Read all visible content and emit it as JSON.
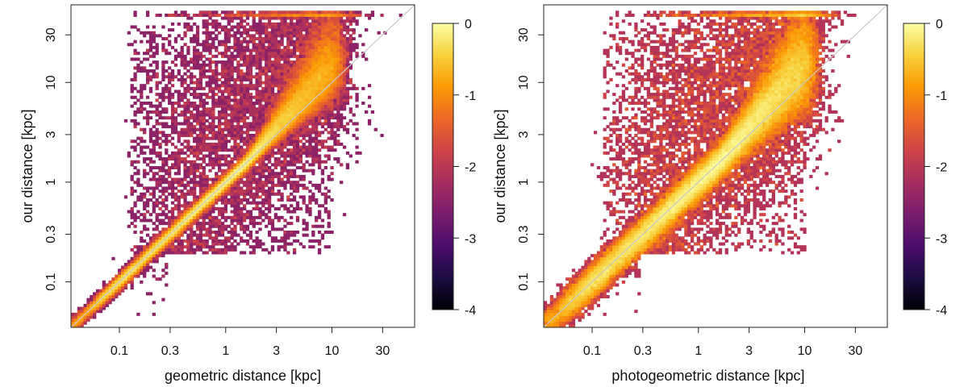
{
  "chart_data": [
    {
      "type": "scatter",
      "subtype": "density-scatter-loglog",
      "xlabel": "geometric distance [kpc]",
      "ylabel": "our distance [kpc]",
      "xscale": "log",
      "yscale": "log",
      "xlim": [
        0.035,
        60
      ],
      "ylim": [
        0.035,
        60
      ],
      "xticks": [
        0.1,
        0.3,
        1,
        3,
        10,
        30
      ],
      "yticks": [
        0.1,
        0.3,
        1,
        3,
        10,
        30
      ],
      "xtick_labels": [
        "0.1",
        "0.3",
        "1",
        "3",
        "10",
        "30"
      ],
      "ytick_labels": [
        "0.1",
        "0.3",
        "1",
        "3",
        "10",
        "30"
      ],
      "reference_line": "y = x",
      "upper_cap_kpc": 50,
      "colorbar": {
        "label": "",
        "ticks": [
          0,
          -1,
          -2,
          -3,
          -4
        ],
        "tick_labels": [
          "0",
          "-1",
          "-2",
          "-3",
          "-4"
        ],
        "range": [
          -4,
          0
        ]
      },
      "colormap": [
        "#000004",
        "#1b0c41",
        "#4a0c6b",
        "#781c6d",
        "#a52c60",
        "#cf4446",
        "#ed6925",
        "#fb9b06",
        "#f7d13d",
        "#fcffa4"
      ]
    },
    {
      "type": "scatter",
      "subtype": "density-scatter-loglog",
      "xlabel": "photogeometric distance [kpc]",
      "ylabel": "our distance [kpc]",
      "xscale": "log",
      "yscale": "log",
      "xlim": [
        0.035,
        60
      ],
      "ylim": [
        0.035,
        60
      ],
      "xticks": [
        0.1,
        0.3,
        1,
        3,
        10,
        30
      ],
      "yticks": [
        0.1,
        0.3,
        1,
        3,
        10,
        30
      ],
      "xtick_labels": [
        "0.1",
        "0.3",
        "1",
        "3",
        "10",
        "30"
      ],
      "ytick_labels": [
        "0.1",
        "0.3",
        "1",
        "3",
        "10",
        "30"
      ],
      "reference_line": "y = x",
      "upper_cap_kpc": 50,
      "colorbar": {
        "label": "",
        "ticks": [
          0,
          -1,
          -2,
          -3,
          -4
        ],
        "tick_labels": [
          "0",
          "-1",
          "-2",
          "-3",
          "-4"
        ],
        "range": [
          -4,
          0
        ]
      },
      "colormap": [
        "#000004",
        "#1b0c41",
        "#4a0c6b",
        "#781c6d",
        "#a52c60",
        "#cf4446",
        "#ed6925",
        "#fb9b06",
        "#f7d13d",
        "#fcffa4"
      ]
    }
  ]
}
